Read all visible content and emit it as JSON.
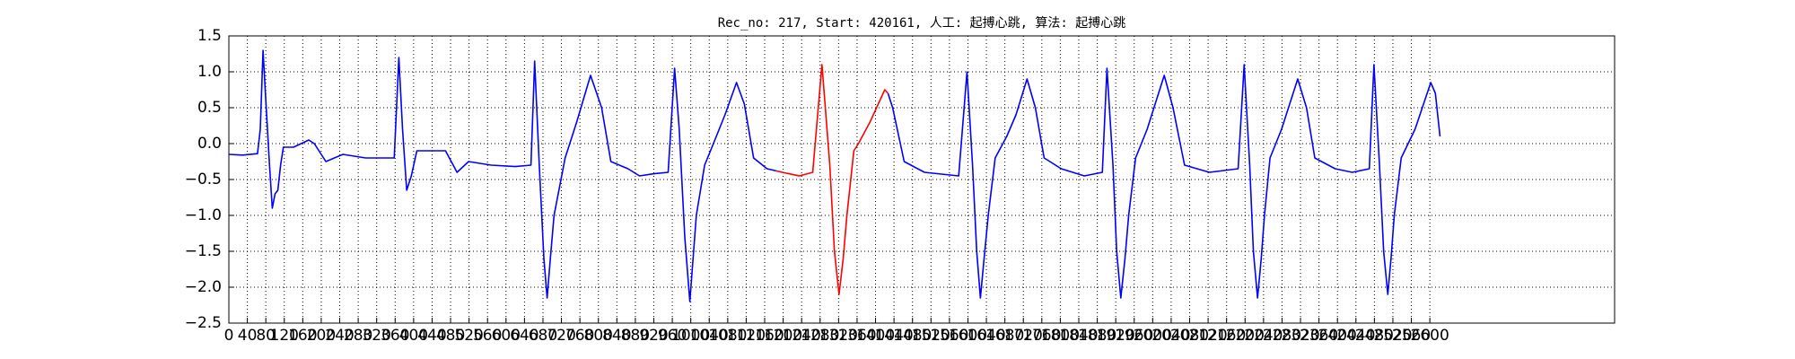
{
  "chart_data": {
    "type": "line",
    "title": "Rec_no: 217, Start: 420161, 人工: 起搏心跳, 算法: 起搏心跳",
    "x": [
      0,
      30,
      62,
      68,
      74,
      80,
      88,
      94,
      100,
      106,
      112,
      118,
      140,
      173,
      185,
      210,
      247,
      296,
      358,
      368,
      376,
      385,
      395,
      407,
      440,
      469,
      494,
      519,
      568,
      620,
      654,
      662,
      672,
      682,
      689,
      696,
      704,
      728,
      753,
      783,
      807,
      827,
      864,
      889,
      920,
      951,
      965,
      975,
      987,
      998,
      1005,
      1012,
      1030,
      1049,
      1074,
      1099,
      1116,
      1136,
      1165,
      1185,
      1198,
      1235,
      1264,
      1284,
      1301,
      1311,
      1321,
      1330,
      1338,
      1353,
      1363,
      1388,
      1420,
      1427,
      1437,
      1462,
      1506,
      1580,
      1598,
      1610,
      1619,
      1627,
      1635,
      1644,
      1659,
      1684,
      1704,
      1728,
      1746,
      1765,
      1802,
      1852,
      1891,
      1901,
      1914,
      1922,
      1931,
      1940,
      1948,
      1963,
      1988,
      2025,
      2044,
      2069,
      2123,
      2185,
      2198,
      2210,
      2218,
      2227,
      2235,
      2242,
      2254,
      2279,
      2314,
      2333,
      2351,
      2395,
      2432,
      2469,
      2479,
      2491,
      2500,
      2509,
      2516,
      2523,
      2538,
      2568,
      2602,
      2612,
      2622
    ],
    "series": [
      {
        "color": "#0000ff",
        "values": [
          -0.15,
          -0.16,
          -0.14,
          0.2,
          1.3,
          0.6,
          -0.3,
          -0.9,
          -0.7,
          -0.65,
          -0.3,
          -0.05,
          -0.05,
          0.05,
          0.0,
          -0.25,
          -0.15,
          -0.2,
          -0.2,
          1.2,
          0.2,
          -0.65,
          -0.45,
          -0.1,
          -0.1,
          -0.1,
          -0.4,
          -0.25,
          -0.3,
          -0.32,
          -0.3,
          1.15,
          -0.3,
          -1.6,
          -2.15,
          -1.6,
          -1.0,
          -0.2,
          0.3,
          0.95,
          0.5,
          -0.25,
          -0.35,
          -0.45,
          -0.42,
          -0.4,
          1.05,
          0.2,
          -1.3,
          -2.2,
          -1.6,
          -1.0,
          -0.3,
          0.0,
          0.4,
          0.85,
          0.55,
          -0.2,
          -0.35,
          -0.38,
          null,
          null,
          null,
          null,
          null,
          null,
          null,
          null,
          null,
          null,
          null,
          null,
          null,
          0.7,
          0.5,
          -0.25,
          -0.4,
          -0.45,
          1.0,
          -0.3,
          -1.5,
          -2.15,
          -1.6,
          -1.0,
          -0.2,
          0.1,
          0.4,
          0.9,
          0.5,
          -0.2,
          -0.35,
          -0.45,
          -0.4,
          1.05,
          -0.3,
          -1.5,
          -2.15,
          -1.6,
          -1.0,
          -0.2,
          0.2,
          0.95,
          0.5,
          -0.3,
          -0.4,
          -0.35,
          1.1,
          -0.3,
          -1.5,
          -2.15,
          -1.6,
          -1.0,
          -0.2,
          0.2,
          0.9,
          0.5,
          -0.2,
          -0.35,
          -0.4,
          -0.35,
          1.1,
          -0.3,
          -1.5,
          -2.1,
          -1.6,
          -1.0,
          -0.2,
          0.2,
          0.85,
          0.7,
          0.1
        ]
      },
      {
        "color": "#ff0000",
        "values": [
          null,
          null,
          null,
          null,
          null,
          null,
          null,
          null,
          null,
          null,
          null,
          null,
          null,
          null,
          null,
          null,
          null,
          null,
          null,
          null,
          null,
          null,
          null,
          null,
          null,
          null,
          null,
          null,
          null,
          null,
          null,
          null,
          null,
          null,
          null,
          null,
          null,
          null,
          null,
          null,
          null,
          null,
          null,
          null,
          null,
          null,
          null,
          null,
          null,
          null,
          null,
          null,
          null,
          null,
          null,
          null,
          null,
          null,
          null,
          -0.38,
          -0.4,
          -0.45,
          -0.4,
          1.1,
          -0.3,
          -1.5,
          -2.1,
          -1.6,
          -1.0,
          -0.1,
          0.0,
          0.3,
          0.75,
          0.7,
          null,
          null,
          null,
          null,
          null,
          null,
          null,
          null,
          null,
          null,
          null,
          null,
          null,
          null,
          null,
          null,
          null,
          null,
          null,
          null,
          null,
          null,
          null,
          null,
          null,
          null,
          null,
          null,
          null,
          null,
          null,
          null,
          null,
          null,
          null,
          null,
          null,
          null,
          null,
          null,
          null,
          null,
          null,
          null,
          null,
          null,
          null,
          null,
          null,
          null,
          null,
          null,
          null,
          null,
          null,
          null,
          null
        ]
      }
    ],
    "xlim": [
      0,
      3000
    ],
    "xticks": [
      0,
      40,
      80,
      120,
      160,
      200,
      240,
      280,
      320,
      360,
      400,
      440,
      480,
      520,
      560,
      600,
      640,
      680,
      720,
      760,
      800,
      840,
      880,
      920,
      960,
      1000,
      1040,
      1080,
      1120,
      1160,
      1200,
      1240,
      1280,
      1320,
      1360,
      1400,
      1440,
      1480,
      1520,
      1560,
      1600,
      1640,
      1680,
      1720,
      1760,
      1800,
      1840,
      1880,
      1920,
      1960,
      2000,
      2040,
      2080,
      2120,
      2160,
      2200,
      2240,
      2280,
      2320,
      2360,
      2400,
      2440,
      2480,
      2520,
      2560,
      2600
    ],
    "ylim": [
      -2.5,
      1.5
    ],
    "yticks": [
      {
        "value": -2.5,
        "label": "−2.5"
      },
      {
        "value": -2,
        "label": "−2.0"
      },
      {
        "value": -1.5,
        "label": "−1.5"
      },
      {
        "value": -1,
        "label": "−1.0"
      },
      {
        "value": -0.5,
        "label": "−0.5"
      },
      {
        "value": 0,
        "label": "0.0"
      },
      {
        "value": 0.5,
        "label": "0.5"
      },
      {
        "value": 1,
        "label": "1.0"
      },
      {
        "value": 1.5,
        "label": "1.5"
      }
    ],
    "grid": true
  }
}
